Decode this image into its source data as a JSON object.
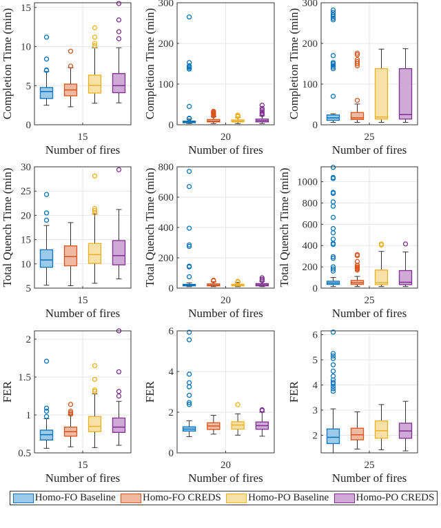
{
  "colors": {
    "Homo-FO Baseline": "#0072BD",
    "Homo-FO CREDS": "#D95319",
    "Homo-PO Baseline": "#EDB120",
    "Homo-PO CREDS": "#7E2F8E"
  },
  "legend": {
    "placement": "bottom",
    "items": [
      "Homo-FO Baseline",
      "Homo-FO CREDS",
      "Homo-PO Baseline",
      "Homo-PO CREDS"
    ]
  },
  "chart_data": [
    {
      "type": "box",
      "ylabel": "Completion Time (min)",
      "xlabel": "Number of fires",
      "category": "15",
      "ylim": [
        0,
        15.6
      ],
      "yticks": [
        0,
        5,
        10,
        15
      ],
      "grid": true,
      "series": [
        {
          "name": "Homo-FO Baseline",
          "q1": 3.36,
          "median": 4.24,
          "q3": 4.76,
          "whisker_low": 2.5,
          "whisker_high": 6.8,
          "outliers": [
            6.95,
            7.0,
            8.4,
            11.2
          ]
        },
        {
          "name": "Homo-FO CREDS",
          "q1": 3.7,
          "median": 4.45,
          "q3": 5.2,
          "whisker_low": 2.3,
          "whisker_high": 7.3,
          "outliers": [
            7.5,
            9.4
          ]
        },
        {
          "name": "Homo-PO Baseline",
          "q1": 4.05,
          "median": 5.05,
          "q3": 6.35,
          "whisker_low": 2.75,
          "whisker_high": 9.85,
          "outliers": [
            10.1,
            10.4,
            11.2,
            12.4
          ]
        },
        {
          "name": "Homo-PO CREDS",
          "q1": 4.1,
          "median": 5.0,
          "q3": 6.55,
          "whisker_low": 2.8,
          "whisker_high": 9.85,
          "outliers": [
            11.0,
            11.9,
            13.4,
            15.5
          ]
        }
      ]
    },
    {
      "type": "box",
      "ylabel": "Completion Time (min)",
      "xlabel": "Number of fires",
      "category": "20",
      "ylim": [
        0,
        300
      ],
      "yticks": [
        0,
        100,
        200,
        300
      ],
      "grid": true,
      "series": [
        {
          "name": "Homo-FO Baseline",
          "q1": 5,
          "median": 7,
          "q3": 9,
          "whisker_low": 3,
          "whisker_high": 14,
          "outliers": [
            15,
            16,
            45,
            137,
            140,
            143,
            145,
            153,
            265
          ]
        },
        {
          "name": "Homo-FO CREDS",
          "q1": 7,
          "median": 9,
          "q3": 13,
          "whisker_low": 3,
          "whisker_high": 20,
          "outliers": [
            22,
            25,
            27,
            29,
            31,
            33
          ]
        },
        {
          "name": "Homo-PO Baseline",
          "q1": 7,
          "median": 9,
          "q3": 12,
          "whisker_low": 3,
          "whisker_high": 18,
          "outliers": [
            20,
            22,
            24
          ]
        },
        {
          "name": "Homo-PO CREDS",
          "q1": 7,
          "median": 10,
          "q3": 14,
          "whisker_low": 3,
          "whisker_high": 22,
          "outliers": [
            25,
            28,
            32,
            36,
            40,
            48
          ]
        }
      ]
    },
    {
      "type": "box",
      "ylabel": "Completion Time (min)",
      "xlabel": "Number of fires",
      "category": "25",
      "ylim": [
        0,
        300
      ],
      "yticks": [
        0,
        100,
        200,
        300
      ],
      "grid": true,
      "series": [
        {
          "name": "Homo-FO Baseline",
          "q1": 11,
          "median": 17,
          "q3": 24,
          "whisker_low": 6,
          "whisker_high": 27,
          "outliers": [
            70,
            138,
            142,
            146,
            150,
            153,
            170,
            258,
            262,
            266,
            270,
            276,
            282
          ]
        },
        {
          "name": "Homo-FO CREDS",
          "q1": 13,
          "median": 17,
          "q3": 30,
          "whisker_low": 6,
          "whisker_high": 51,
          "outliers": [
            60,
            145,
            150,
            155,
            160,
            172,
            176
          ]
        },
        {
          "name": "Homo-PO Baseline",
          "q1": 14,
          "median": 19,
          "q3": 138,
          "whisker_low": 6,
          "whisker_high": 186,
          "outliers": []
        },
        {
          "name": "Homo-PO CREDS",
          "q1": 14,
          "median": 25,
          "q3": 138,
          "whisker_low": 6,
          "whisker_high": 187,
          "outliers": []
        }
      ]
    },
    {
      "type": "box",
      "ylabel": "Total Quench Time (min)",
      "xlabel": "Number of fires",
      "category": "15",
      "ylim": [
        5,
        30
      ],
      "yticks": [
        5,
        10,
        15,
        20,
        25,
        30
      ],
      "grid": true,
      "series": [
        {
          "name": "Homo-FO Baseline",
          "q1": 9.3,
          "median": 10.8,
          "q3": 12.9,
          "whisker_low": 5.6,
          "whisker_high": 17.9,
          "outliers": [
            19,
            20.5,
            24.3
          ]
        },
        {
          "name": "Homo-FO CREDS",
          "q1": 9.6,
          "median": 11.5,
          "q3": 13.7,
          "whisker_low": 5.5,
          "whisker_high": 18.5,
          "outliers": []
        },
        {
          "name": "Homo-PO Baseline",
          "q1": 10.1,
          "median": 11.9,
          "q3": 14.2,
          "whisker_low": 6,
          "whisker_high": 20.3,
          "outliers": [
            20.5,
            21,
            21.4,
            28.1
          ]
        },
        {
          "name": "Homo-PO CREDS",
          "q1": 9.8,
          "median": 11.7,
          "q3": 14.8,
          "whisker_low": 6.9,
          "whisker_high": 21.2,
          "outliers": [
            29.4
          ]
        }
      ]
    },
    {
      "type": "box",
      "ylabel": "Total Quench Time (min)",
      "xlabel": "Number of fires",
      "category": "20",
      "ylim": [
        0,
        800
      ],
      "yticks": [
        0,
        200,
        400,
        600,
        800
      ],
      "grid": true,
      "series": [
        {
          "name": "Homo-FO Baseline",
          "q1": 15,
          "median": 20,
          "q3": 25,
          "whisker_low": 10,
          "whisker_high": 35,
          "outliers": [
            75,
            140,
            145,
            275,
            285,
            395,
            670,
            770
          ]
        },
        {
          "name": "Homo-FO CREDS",
          "q1": 15,
          "median": 20,
          "q3": 28,
          "whisker_low": 10,
          "whisker_high": 42,
          "outliers": [
            48,
            52
          ]
        },
        {
          "name": "Homo-PO Baseline",
          "q1": 15,
          "median": 20,
          "q3": 26,
          "whisker_low": 10,
          "whisker_high": 38,
          "outliers": [
            40,
            45
          ]
        },
        {
          "name": "Homo-PO CREDS",
          "q1": 15,
          "median": 22,
          "q3": 30,
          "whisker_low": 10,
          "whisker_high": 45,
          "outliers": [
            50,
            58,
            68
          ]
        }
      ]
    },
    {
      "type": "box",
      "ylabel": "Total Quench Time (min)",
      "xlabel": "Number of fires",
      "category": "25",
      "ylim": [
        0,
        1140
      ],
      "yticks": [
        0,
        200,
        400,
        600,
        800,
        1000
      ],
      "grid": true,
      "series": [
        {
          "name": "Homo-FO Baseline",
          "q1": 35,
          "median": 48,
          "q3": 65,
          "whisker_low": 15,
          "whisker_high": 100,
          "outliers": [
            160,
            180,
            200,
            280,
            295,
            410,
            420,
            460,
            520,
            560,
            665,
            770,
            810,
            890,
            900,
            1030,
            1040,
            1135
          ]
        },
        {
          "name": "Homo-FO CREDS",
          "q1": 35,
          "median": 50,
          "q3": 72,
          "whisker_low": 15,
          "whisker_high": 110,
          "outliers": [
            170,
            180,
            190,
            200,
            215,
            250,
            305,
            315
          ]
        },
        {
          "name": "Homo-PO Baseline",
          "q1": 33,
          "median": 50,
          "q3": 170,
          "whisker_low": 15,
          "whisker_high": 345,
          "outliers": [
            405,
            415
          ]
        },
        {
          "name": "Homo-PO CREDS",
          "q1": 33,
          "median": 55,
          "q3": 165,
          "whisker_low": 15,
          "whisker_high": 340,
          "outliers": [
            415
          ]
        }
      ]
    },
    {
      "type": "box",
      "ylabel": "FER",
      "xlabel": "Number of fires",
      "category": "15",
      "ylim": [
        0.5,
        2.11
      ],
      "yticks": [
        0.5,
        1,
        1.5,
        2
      ],
      "grid": true,
      "series": [
        {
          "name": "Homo-FO Baseline",
          "q1": 0.67,
          "median": 0.74,
          "q3": 0.8,
          "whisker_low": 0.56,
          "whisker_high": 0.95,
          "outliers": [
            0.98,
            1.05,
            1.09,
            1.71
          ]
        },
        {
          "name": "Homo-FO CREDS",
          "q1": 0.72,
          "median": 0.78,
          "q3": 0.84,
          "whisker_low": 0.58,
          "whisker_high": 1.0,
          "outliers": [
            1.01,
            1.03,
            1.05,
            1.14
          ]
        },
        {
          "name": "Homo-PO Baseline",
          "q1": 0.78,
          "median": 0.85,
          "q3": 0.98,
          "whisker_low": 0.57,
          "whisker_high": 1.28,
          "outliers": [
            1.31,
            1.33,
            1.47,
            1.65
          ]
        },
        {
          "name": "Homo-PO CREDS",
          "q1": 0.77,
          "median": 0.84,
          "q3": 0.96,
          "whisker_low": 0.6,
          "whisker_high": 1.18,
          "outliers": [
            1.25,
            1.31,
            1.57,
            2.11
          ]
        }
      ]
    },
    {
      "type": "box",
      "ylabel": "FER",
      "xlabel": "Number of fires",
      "category": "20",
      "ylim": [
        0,
        6
      ],
      "yticks": [
        0,
        2,
        4,
        6
      ],
      "grid": true,
      "series": [
        {
          "name": "Homo-FO Baseline",
          "q1": 1.07,
          "median": 1.17,
          "q3": 1.28,
          "whisker_low": 0.8,
          "whisker_high": 1.58,
          "outliers": [
            2.38,
            2.47,
            2.83,
            3.25,
            3.45,
            3.87,
            5.56,
            5.93
          ]
        },
        {
          "name": "Homo-FO CREDS",
          "q1": 1.15,
          "median": 1.32,
          "q3": 1.48,
          "whisker_low": 0.92,
          "whisker_high": 1.85,
          "outliers": []
        },
        {
          "name": "Homo-PO Baseline",
          "q1": 1.17,
          "median": 1.37,
          "q3": 1.53,
          "whisker_low": 0.87,
          "whisker_high": 1.92,
          "outliers": [
            2.37
          ]
        },
        {
          "name": "Homo-PO CREDS",
          "q1": 1.16,
          "median": 1.34,
          "q3": 1.52,
          "whisker_low": 0.82,
          "whisker_high": 2.0,
          "outliers": [
            2.08,
            2.12
          ]
        }
      ]
    },
    {
      "type": "box",
      "ylabel": "FER",
      "xlabel": "Number of fires",
      "category": "25",
      "ylim": [
        1.3,
        6.15
      ],
      "yticks": [
        2,
        3,
        4,
        5,
        6
      ],
      "grid": true,
      "series": [
        {
          "name": "Homo-FO Baseline",
          "q1": 1.67,
          "median": 1.92,
          "q3": 2.25,
          "whisker_low": 1.3,
          "whisker_high": 3.05,
          "outliers": [
            3.75,
            3.85,
            3.95,
            4.05,
            4.1,
            4.2,
            4.35,
            4.55,
            4.8,
            5.05,
            5.15,
            5.25,
            6.1
          ]
        },
        {
          "name": "Homo-FO CREDS",
          "q1": 1.82,
          "median": 2.02,
          "q3": 2.28,
          "whisker_low": 1.45,
          "whisker_high": 2.93,
          "outliers": []
        },
        {
          "name": "Homo-PO Baseline",
          "q1": 1.88,
          "median": 2.18,
          "q3": 2.57,
          "whisker_low": 1.42,
          "whisker_high": 3.22,
          "outliers": []
        },
        {
          "name": "Homo-PO CREDS",
          "q1": 1.88,
          "median": 2.17,
          "q3": 2.48,
          "whisker_low": 1.38,
          "whisker_high": 3.35,
          "outliers": []
        }
      ]
    }
  ]
}
